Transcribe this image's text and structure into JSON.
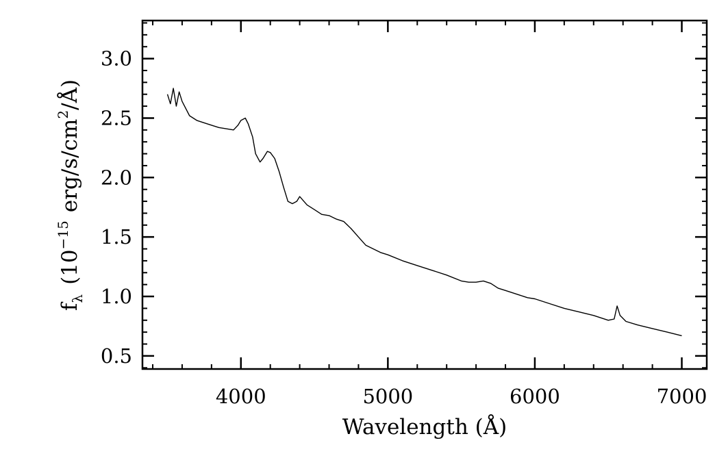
{
  "chart_data": {
    "type": "line",
    "title": "",
    "xlabel": "Wavelength (Å)",
    "ylabel": {
      "base": "f",
      "base_sub": "λ",
      "open": "(10",
      "exponent": "−15",
      "units": "erg/s/cm",
      "units_sup": "2",
      "tail": "/Å)"
    },
    "xlim": [
      3330,
      7170
    ],
    "ylim": [
      0.39,
      3.32
    ],
    "x_ticks": [
      {
        "value": 4000,
        "label": "4000"
      },
      {
        "value": 5000,
        "label": "5000"
      },
      {
        "value": 6000,
        "label": "6000"
      },
      {
        "value": 7000,
        "label": "7000"
      }
    ],
    "y_ticks": [
      {
        "value": 0.5,
        "label": "0.5"
      },
      {
        "value": 1.0,
        "label": "1.0"
      },
      {
        "value": 1.5,
        "label": "1.5"
      },
      {
        "value": 2.0,
        "label": "2.0"
      },
      {
        "value": 2.5,
        "label": "2.5"
      },
      {
        "value": 3.0,
        "label": "3.0"
      }
    ],
    "x_minor_step": 200,
    "y_minor_step": 0.1,
    "grid": false,
    "series": [
      {
        "line_color": "#000000",
        "x": [
          3500,
          3520,
          3540,
          3560,
          3580,
          3600,
          3650,
          3700,
          3750,
          3800,
          3850,
          3900,
          3950,
          3980,
          4000,
          4030,
          4050,
          4080,
          4100,
          4130,
          4150,
          4180,
          4200,
          4230,
          4260,
          4290,
          4320,
          4350,
          4380,
          4400,
          4450,
          4500,
          4550,
          4600,
          4650,
          4700,
          4750,
          4800,
          4850,
          4900,
          4950,
          5000,
          5100,
          5200,
          5300,
          5400,
          5500,
          5550,
          5600,
          5650,
          5700,
          5750,
          5800,
          5850,
          5900,
          5950,
          6000,
          6100,
          6200,
          6300,
          6400,
          6500,
          6540,
          6560,
          6580,
          6620,
          6700,
          6800,
          6900,
          7000
        ],
        "y": [
          2.7,
          2.62,
          2.75,
          2.6,
          2.72,
          2.64,
          2.52,
          2.48,
          2.46,
          2.44,
          2.42,
          2.41,
          2.4,
          2.44,
          2.48,
          2.5,
          2.45,
          2.34,
          2.2,
          2.13,
          2.16,
          2.22,
          2.21,
          2.16,
          2.05,
          1.92,
          1.8,
          1.78,
          1.8,
          1.84,
          1.77,
          1.73,
          1.69,
          1.68,
          1.65,
          1.63,
          1.57,
          1.5,
          1.43,
          1.4,
          1.37,
          1.35,
          1.3,
          1.26,
          1.22,
          1.18,
          1.13,
          1.12,
          1.12,
          1.13,
          1.11,
          1.07,
          1.05,
          1.03,
          1.01,
          0.99,
          0.98,
          0.94,
          0.9,
          0.87,
          0.84,
          0.8,
          0.81,
          0.92,
          0.84,
          0.79,
          0.76,
          0.73,
          0.7,
          0.67
        ]
      }
    ]
  }
}
